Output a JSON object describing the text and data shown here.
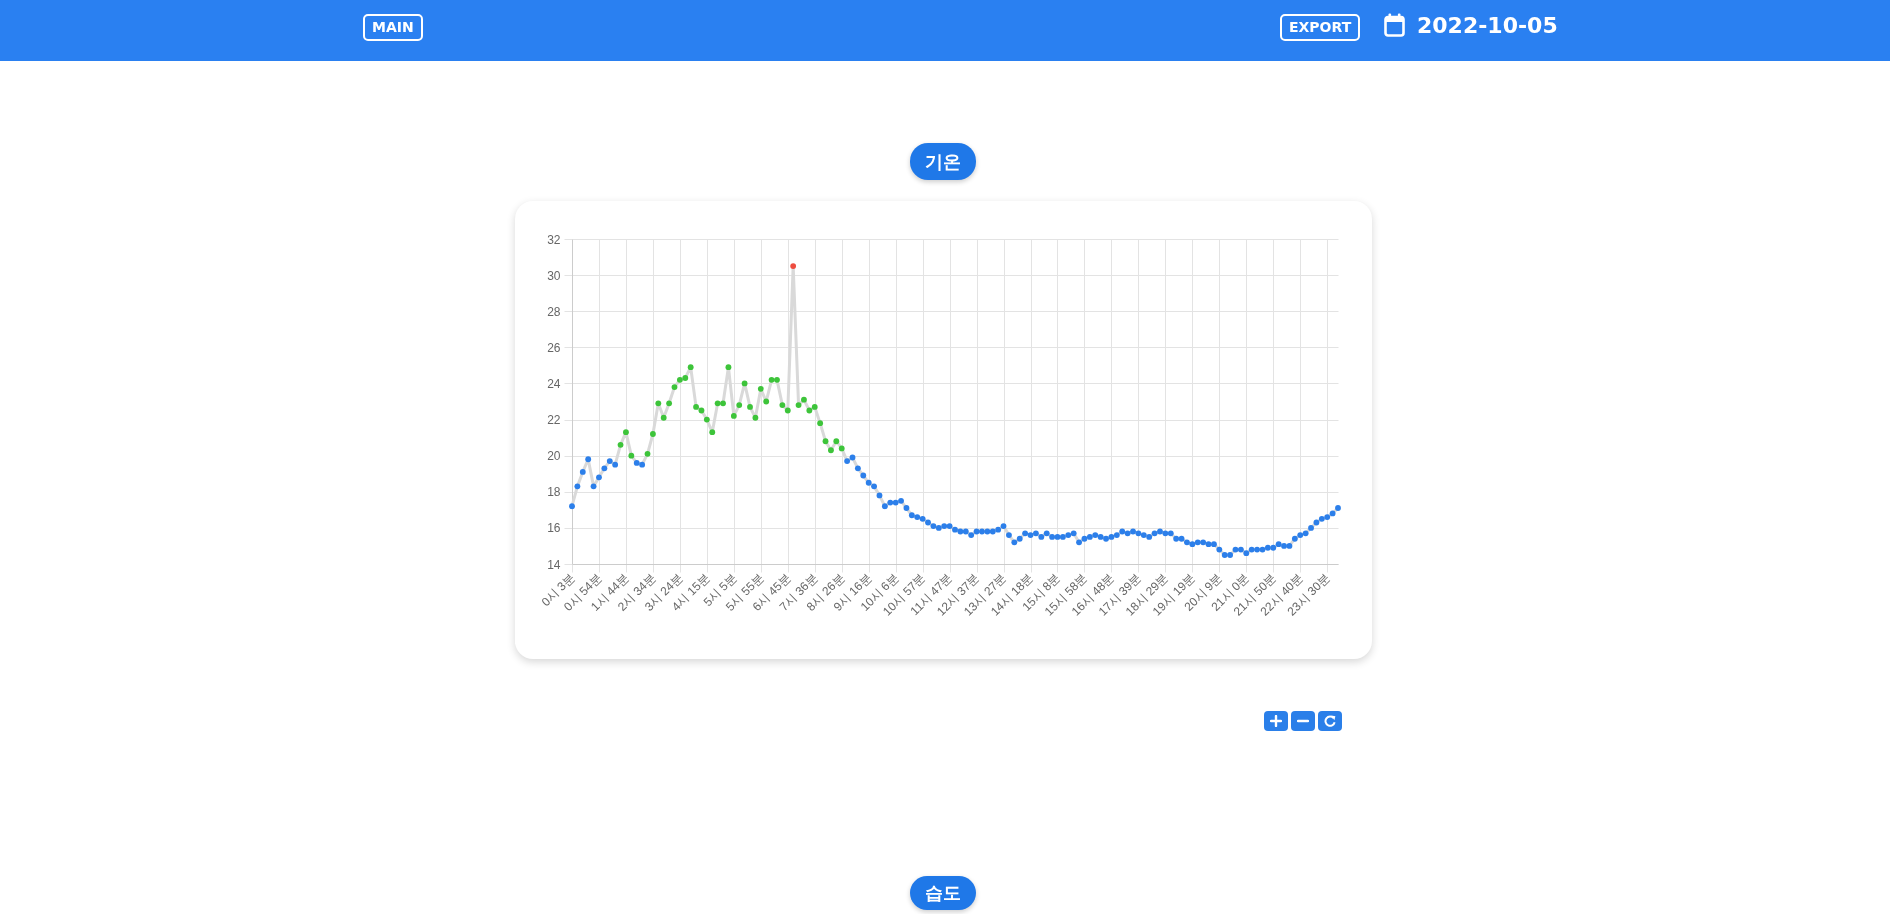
{
  "chart_data": {
    "type": "line",
    "title": "기온",
    "categories": [
      "0시 3분",
      null,
      null,
      null,
      null,
      "0시 54분",
      null,
      null,
      null,
      null,
      "1시 44분",
      null,
      null,
      null,
      null,
      "2시 34분",
      null,
      null,
      null,
      null,
      "3시 24분",
      null,
      null,
      null,
      null,
      "4시 15분",
      null,
      null,
      null,
      null,
      "5시 5분",
      null,
      null,
      null,
      null,
      "5시 55분",
      null,
      null,
      null,
      null,
      "6시 45분",
      null,
      null,
      null,
      null,
      "7시 36분",
      null,
      null,
      null,
      null,
      "8시 26분",
      null,
      null,
      null,
      null,
      "9시 16분",
      null,
      null,
      null,
      null,
      "10시 6분",
      null,
      null,
      null,
      null,
      "10시 57분",
      null,
      null,
      null,
      null,
      "11시 47분",
      null,
      null,
      null,
      null,
      "12시 37분",
      null,
      null,
      null,
      null,
      "13시 27분",
      null,
      null,
      null,
      null,
      "14시 18분",
      null,
      null,
      null,
      null,
      "15시 8분",
      null,
      null,
      null,
      null,
      "15시 58분",
      null,
      null,
      null,
      null,
      "16시 48분",
      null,
      null,
      null,
      null,
      "17시 39분",
      null,
      null,
      null,
      null,
      "18시 29분",
      null,
      null,
      null,
      null,
      "19시 19분",
      null,
      null,
      null,
      null,
      "20시 9분",
      null,
      null,
      null,
      null,
      "21시 0분",
      null,
      null,
      null,
      null,
      "21시 50분",
      null,
      null,
      null,
      null,
      "22시 40분",
      null,
      null,
      null,
      null,
      "23시 30분",
      null,
      null
    ],
    "values": [
      17.2,
      18.3,
      19.1,
      19.8,
      18.3,
      18.8,
      19.3,
      19.7,
      19.5,
      20.6,
      21.3,
      20.0,
      19.6,
      19.5,
      20.1,
      21.2,
      22.9,
      22.1,
      22.9,
      23.8,
      24.2,
      24.3,
      24.9,
      22.7,
      22.5,
      22.0,
      21.3,
      22.9,
      22.9,
      24.9,
      22.2,
      22.8,
      24.0,
      22.7,
      22.1,
      23.7,
      23.0,
      24.2,
      24.2,
      22.8,
      22.5,
      30.5,
      22.8,
      23.1,
      22.5,
      22.7,
      21.8,
      20.8,
      20.3,
      20.8,
      20.4,
      19.7,
      19.9,
      19.3,
      18.9,
      18.5,
      18.3,
      17.8,
      17.2,
      17.4,
      17.4,
      17.5,
      17.1,
      16.7,
      16.6,
      16.5,
      16.3,
      16.1,
      16.0,
      16.1,
      16.1,
      15.9,
      15.8,
      15.8,
      15.6,
      15.8,
      15.8,
      15.8,
      15.8,
      15.9,
      16.1,
      15.6,
      15.2,
      15.4,
      15.7,
      15.6,
      15.7,
      15.5,
      15.7,
      15.5,
      15.5,
      15.5,
      15.6,
      15.7,
      15.2,
      15.4,
      15.5,
      15.6,
      15.5,
      15.4,
      15.5,
      15.6,
      15.8,
      15.7,
      15.8,
      15.7,
      15.6,
      15.5,
      15.7,
      15.8,
      15.7,
      15.7,
      15.4,
      15.4,
      15.2,
      15.1,
      15.2,
      15.2,
      15.1,
      15.1,
      14.8,
      14.5,
      14.5,
      14.8,
      14.8,
      14.6,
      14.8,
      14.8,
      14.8,
      14.9,
      14.9,
      15.1,
      15.0,
      15.0,
      15.4,
      15.6,
      15.7,
      16.0,
      16.3,
      16.5,
      16.6,
      16.8,
      17.1
    ],
    "color": "#d9d9d9",
    "colors": [
      "#2c7fea",
      "#2c7fea",
      "#2c7fea",
      "#2c7fea",
      "#2c7fea",
      "#2c7fea",
      "#2c7fea",
      "#2c7fea",
      "#2c7fea",
      "#3dc43a",
      "#3dc43a",
      "#3dc43a",
      "#2c7fea",
      "#2c7fea",
      "#3dc43a",
      "#3dc43a",
      "#3dc43a",
      "#3dc43a",
      "#3dc43a",
      "#3dc43a",
      "#3dc43a",
      "#3dc43a",
      "#3dc43a",
      "#3dc43a",
      "#3dc43a",
      "#3dc43a",
      "#3dc43a",
      "#3dc43a",
      "#3dc43a",
      "#3dc43a",
      "#3dc43a",
      "#3dc43a",
      "#3dc43a",
      "#3dc43a",
      "#3dc43a",
      "#3dc43a",
      "#3dc43a",
      "#3dc43a",
      "#3dc43a",
      "#3dc43a",
      "#3dc43a",
      "#ee4d40",
      "#3dc43a",
      "#3dc43a",
      "#3dc43a",
      "#3dc43a",
      "#3dc43a",
      "#3dc43a",
      "#3dc43a",
      "#3dc43a",
      "#3dc43a",
      "#2c7fea",
      "#2c7fea",
      "#2c7fea",
      "#2c7fea",
      "#2c7fea",
      "#2c7fea",
      "#2c7fea",
      "#2c7fea",
      "#2c7fea",
      "#2c7fea",
      "#2c7fea",
      "#2c7fea",
      "#2c7fea",
      "#2c7fea",
      "#2c7fea",
      "#2c7fea",
      "#2c7fea",
      "#2c7fea",
      "#2c7fea",
      "#2c7fea",
      "#2c7fea",
      "#2c7fea",
      "#2c7fea",
      "#2c7fea",
      "#2c7fea",
      "#2c7fea",
      "#2c7fea",
      "#2c7fea",
      "#2c7fea",
      "#2c7fea",
      "#2c7fea",
      "#2c7fea",
      "#2c7fea",
      "#2c7fea",
      "#2c7fea",
      "#2c7fea",
      "#2c7fea",
      "#2c7fea",
      "#2c7fea",
      "#2c7fea",
      "#2c7fea",
      "#2c7fea",
      "#2c7fea",
      "#2c7fea",
      "#2c7fea",
      "#2c7fea",
      "#2c7fea",
      "#2c7fea",
      "#2c7fea",
      "#2c7fea",
      "#2c7fea",
      "#2c7fea",
      "#2c7fea",
      "#2c7fea",
      "#2c7fea",
      "#2c7fea",
      "#2c7fea",
      "#2c7fea",
      "#2c7fea",
      "#2c7fea",
      "#2c7fea",
      "#2c7fea",
      "#2c7fea",
      "#2c7fea",
      "#2c7fea",
      "#2c7fea",
      "#2c7fea",
      "#2c7fea",
      "#2c7fea",
      "#2c7fea",
      "#2c7fea",
      "#2c7fea",
      "#2c7fea",
      "#2c7fea",
      "#2c7fea",
      "#2c7fea",
      "#2c7fea",
      "#2c7fea",
      "#2c7fea",
      "#2c7fea",
      "#2c7fea",
      "#2c7fea",
      "#2c7fea",
      "#2c7fea",
      "#2c7fea",
      "#2c7fea",
      "#2c7fea",
      "#2c7fea",
      "#2c7fea",
      "#2c7fea",
      "#2c7fea",
      "#2c7fea"
    ],
    "ylim": [
      14,
      32
    ],
    "yticks": [
      14,
      16,
      18,
      20,
      22,
      24,
      26,
      28,
      30,
      32
    ],
    "grid": true,
    "marker": "circle",
    "annotations": [
      "MAIN",
      "EXPORT",
      "2022-10-05",
      "습도"
    ]
  }
}
